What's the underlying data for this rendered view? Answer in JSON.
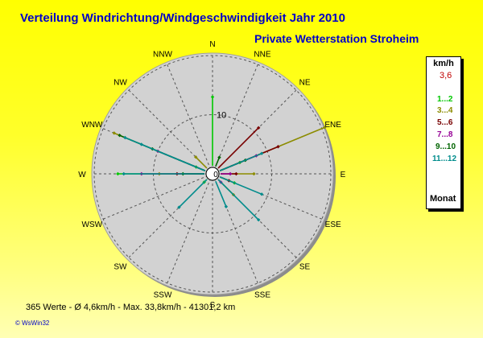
{
  "title": "Verteilung Windrichtung/Windgeschwindigkeit  Jahr 2010",
  "station": "Private Wetterstation Stroheim",
  "footer": "365 Werte   -   Ø 4,6km/h  -  Max. 33,8km/h   -   41301,2 km",
  "credit": "© WsWin32",
  "legend": {
    "unit": "km/h",
    "rest_value": "3,6",
    "footer": "Monat",
    "ranges": [
      {
        "label": "1...2",
        "color": "#00c800"
      },
      {
        "label": "3...4",
        "color": "#8c8c00"
      },
      {
        "label": "5...6",
        "color": "#780000"
      },
      {
        "label": "7...8",
        "color": "#960096"
      },
      {
        "label": "9...10",
        "color": "#006400"
      },
      {
        "label": "11...12",
        "color": "#008c8c"
      }
    ]
  },
  "colors": {
    "title": "#0000c8",
    "disc": "#d2d2d2",
    "background": "#ffff00",
    "rest": "#c00000"
  },
  "chart_data": {
    "type": "polar-scatter",
    "directions": [
      "N",
      "NNE",
      "NE",
      "ENE",
      "E",
      "ESE",
      "SE",
      "SSE",
      "S",
      "SSW",
      "SW",
      "WSW",
      "W",
      "WNW",
      "NW",
      "NNW"
    ],
    "r_max": 20,
    "ring_values": [
      10,
      20
    ],
    "ring_label": "10",
    "calm_value": 0,
    "series": [
      {
        "name": "1...2",
        "color": "#00c800",
        "points": [
          [
            0,
            13
          ],
          [
            270,
            16
          ],
          [
            67.5,
            5
          ],
          [
            112.5,
            4
          ],
          [
            292.5,
            3
          ],
          [
            225,
            2
          ]
        ]
      },
      {
        "name": "3...4",
        "color": "#8c8c00",
        "points": [
          [
            67.5,
            20.5
          ],
          [
            90,
            7
          ],
          [
            292.5,
            18
          ],
          [
            270,
            9
          ],
          [
            135,
            5
          ],
          [
            315,
            4
          ]
        ]
      },
      {
        "name": "5...6",
        "color": "#780000",
        "points": [
          [
            45,
            11
          ],
          [
            67.5,
            12
          ],
          [
            270,
            6
          ],
          [
            90,
            4
          ],
          [
            112.5,
            3
          ]
        ]
      },
      {
        "name": "7...8",
        "color": "#960096",
        "points": [
          [
            67.5,
            8
          ],
          [
            90,
            3
          ],
          [
            292.5,
            10
          ],
          [
            270,
            12
          ],
          [
            135,
            2
          ]
        ]
      },
      {
        "name": "9...10",
        "color": "#006400",
        "points": [
          [
            292.5,
            17
          ],
          [
            292.5,
            11
          ],
          [
            270,
            5
          ],
          [
            67.5,
            6
          ],
          [
            22.5,
            3
          ]
        ]
      },
      {
        "name": "11...12",
        "color": "#008c8c",
        "points": [
          [
            292.5,
            16
          ],
          [
            292.5,
            13
          ],
          [
            270,
            15
          ],
          [
            67.5,
            9
          ],
          [
            135,
            11
          ],
          [
            112.5,
            9
          ],
          [
            225,
            8
          ],
          [
            157.5,
            6
          ]
        ]
      }
    ]
  }
}
